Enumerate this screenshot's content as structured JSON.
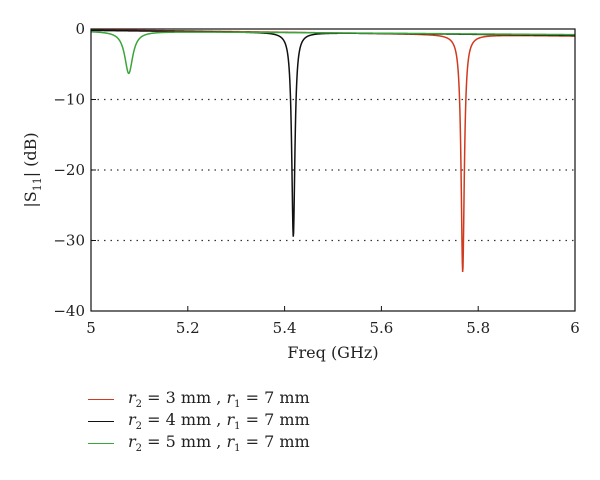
{
  "chart_data": {
    "type": "line",
    "xlabel": "Freq (GHz)",
    "ylabel_main": "|S",
    "ylabel_sub": "11",
    "ylabel_tail": "| (dB)",
    "xlim": [
      5,
      6
    ],
    "ylim": [
      -40,
      0
    ],
    "x_ticks": [
      "5",
      "5.2",
      "5.4",
      "5.6",
      "5.8",
      "6"
    ],
    "y_ticks": [
      "0",
      "−10",
      "−20",
      "−30",
      "−40"
    ],
    "grid": "dotted horizontal at -10, -20, -30",
    "legend_position": "below",
    "series": [
      {
        "name": "r2 = 3 mm , r1 = 7 mm",
        "legend": {
          "a_var": "r",
          "a_sub": "2",
          "a_rest": " = 3 mm , ",
          "b_var": "r",
          "b_sub": "1",
          "b_rest": " = 7 mm"
        },
        "color": "#d03a1e",
        "resonance": {
          "freq": 5.768,
          "min_db": -34.5,
          "width": 0.004,
          "baseline_start": -0.1,
          "baseline_end": -1.0
        }
      },
      {
        "name": "r2 = 4 mm , r1 = 7 mm",
        "legend": {
          "a_var": "r",
          "a_sub": "2",
          "a_rest": " = 4 mm , ",
          "b_var": "r",
          "b_sub": "1",
          "b_rest": " = 7 mm"
        },
        "color": "#111111",
        "resonance": {
          "freq": 5.418,
          "min_db": -29.5,
          "width": 0.004,
          "baseline_start": -0.2,
          "baseline_end": -0.9
        }
      },
      {
        "name": "r2 = 5 mm , r1 = 7 mm",
        "legend": {
          "a_var": "r",
          "a_sub": "2",
          "a_rest": " = 5 mm , ",
          "b_var": "r",
          "b_sub": "1",
          "b_rest": " = 7 mm"
        },
        "color": "#3aa53a",
        "resonance": {
          "freq": 5.078,
          "min_db": -6.3,
          "width": 0.01,
          "baseline_start": -0.3,
          "baseline_end": -0.8
        }
      }
    ]
  }
}
